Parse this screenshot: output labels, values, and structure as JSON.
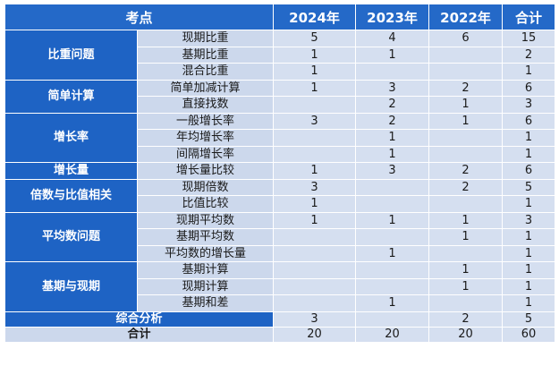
{
  "header": {
    "topic": "考点",
    "y2024": "2024年",
    "y2023": "2023年",
    "y2022": "2022年",
    "total": "合计"
  },
  "groups": [
    {
      "category": "比重问题",
      "rows": [
        {
          "sub": "现期比重",
          "v2024": "5",
          "v2023": "4",
          "v2022": "6",
          "total": "15"
        },
        {
          "sub": "基期比重",
          "v2024": "1",
          "v2023": "1",
          "v2022": "",
          "total": "2"
        },
        {
          "sub": "混合比重",
          "v2024": "1",
          "v2023": "",
          "v2022": "",
          "total": "1"
        }
      ]
    },
    {
      "category": "简单计算",
      "rows": [
        {
          "sub": "简单加减计算",
          "v2024": "1",
          "v2023": "3",
          "v2022": "2",
          "total": "6"
        },
        {
          "sub": "直接找数",
          "v2024": "",
          "v2023": "2",
          "v2022": "1",
          "total": "3"
        }
      ]
    },
    {
      "category": "增长率",
      "rows": [
        {
          "sub": "一般增长率",
          "v2024": "3",
          "v2023": "2",
          "v2022": "1",
          "total": "6"
        },
        {
          "sub": "年均增长率",
          "v2024": "",
          "v2023": "1",
          "v2022": "",
          "total": "1"
        },
        {
          "sub": "间隔增长率",
          "v2024": "",
          "v2023": "1",
          "v2022": "",
          "total": "1"
        }
      ]
    },
    {
      "category": "增长量",
      "rows": [
        {
          "sub": "增长量比较",
          "v2024": "1",
          "v2023": "3",
          "v2022": "2",
          "total": "6"
        }
      ]
    },
    {
      "category": "倍数与比值相关",
      "rows": [
        {
          "sub": "现期倍数",
          "v2024": "3",
          "v2023": "",
          "v2022": "2",
          "total": "5"
        },
        {
          "sub": "比值比较",
          "v2024": "1",
          "v2023": "",
          "v2022": "",
          "total": "1"
        }
      ]
    },
    {
      "category": "平均数问题",
      "rows": [
        {
          "sub": "现期平均数",
          "v2024": "1",
          "v2023": "1",
          "v2022": "1",
          "total": "3"
        },
        {
          "sub": "基期平均数",
          "v2024": "",
          "v2023": "",
          "v2022": "1",
          "total": "1"
        },
        {
          "sub": "平均数的增长量",
          "v2024": "",
          "v2023": "1",
          "v2022": "",
          "total": "1"
        }
      ]
    },
    {
      "category": "基期与现期",
      "rows": [
        {
          "sub": "基期计算",
          "v2024": "",
          "v2023": "",
          "v2022": "1",
          "total": "1"
        },
        {
          "sub": "现期计算",
          "v2024": "",
          "v2023": "",
          "v2022": "1",
          "total": "1"
        },
        {
          "sub": "基期和差",
          "v2024": "",
          "v2023": "1",
          "v2022": "",
          "total": "1"
        }
      ]
    }
  ],
  "synthesis": {
    "label": "综合分析",
    "v2024": "3",
    "v2023": "",
    "v2022": "2",
    "total": "5"
  },
  "grand_total": {
    "label": "合计",
    "v2024": "20",
    "v2023": "20",
    "v2022": "20",
    "total": "60"
  }
}
